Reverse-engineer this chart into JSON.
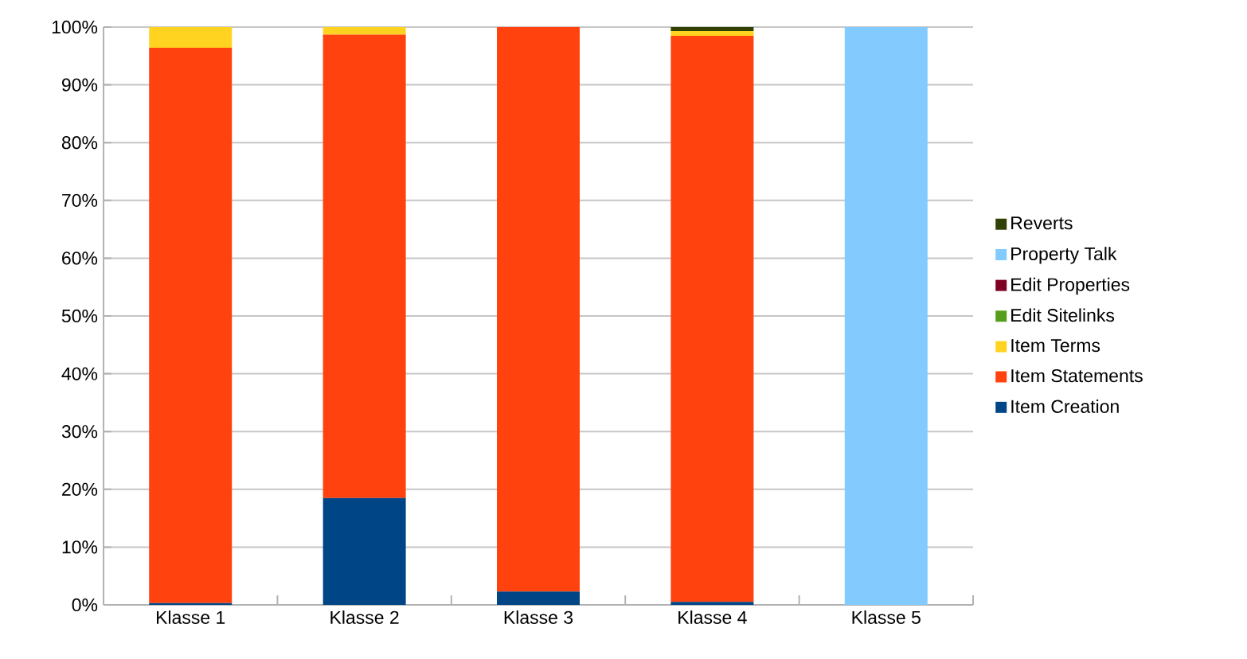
{
  "chart_data": {
    "type": "bar",
    "stacked": true,
    "categories": [
      "Klasse 1",
      "Klasse 2",
      "Klasse 3",
      "Klasse 4",
      "Klasse 5"
    ],
    "series": [
      {
        "name": "Item Creation",
        "color": "#004586",
        "values": [
          0.3,
          18.5,
          2.3,
          0.5,
          0
        ]
      },
      {
        "name": "Item Statements",
        "color": "#ff420e",
        "values": [
          96.1,
          80.2,
          97.7,
          98.0,
          0
        ]
      },
      {
        "name": "Item Terms",
        "color": "#ffd320",
        "values": [
          3.6,
          1.3,
          0,
          0.8,
          0
        ]
      },
      {
        "name": "Edit Sitelinks",
        "color": "#579d1c",
        "values": [
          0,
          0,
          0,
          0,
          0
        ]
      },
      {
        "name": "Edit Properties",
        "color": "#7e0021",
        "values": [
          0,
          0,
          0,
          0,
          0
        ]
      },
      {
        "name": "Property Talk",
        "color": "#83caff",
        "values": [
          0,
          0,
          0,
          0,
          100
        ]
      },
      {
        "name": "Reverts",
        "color": "#314004",
        "values": [
          0,
          0,
          0,
          0.7,
          0
        ]
      }
    ],
    "ylim": [
      0,
      100
    ],
    "yticks": [
      {
        "value": 0,
        "label": "0%"
      },
      {
        "value": 10,
        "label": "10%"
      },
      {
        "value": 20,
        "label": "20%"
      },
      {
        "value": 30,
        "label": "30%"
      },
      {
        "value": 40,
        "label": "40%"
      },
      {
        "value": 50,
        "label": "50%"
      },
      {
        "value": 60,
        "label": "60%"
      },
      {
        "value": 70,
        "label": "70%"
      },
      {
        "value": 80,
        "label": "80%"
      },
      {
        "value": 90,
        "label": "90%"
      },
      {
        "value": 100,
        "label": "100%"
      }
    ],
    "grid": "y",
    "legend": "right"
  }
}
